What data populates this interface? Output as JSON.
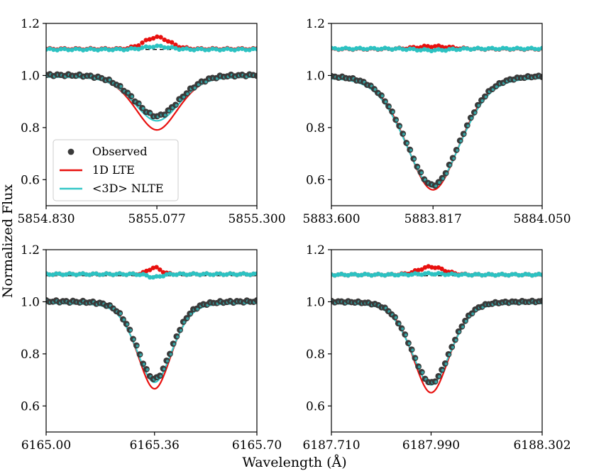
{
  "xlabel": "Wavelength (Å)",
  "ylabel": "Normalized Flux",
  "legend": {
    "placement": "lower-left of first panel",
    "entries": [
      {
        "label": "Observed",
        "marker": "dot",
        "color": "#3a3a3a"
      },
      {
        "label": "1D LTE",
        "marker": "line",
        "color": "#e8100e"
      },
      {
        "label": "<3D> NLTE",
        "marker": "line",
        "color": "#35c7c7"
      }
    ]
  },
  "colors": {
    "observed": "#3a3a3a",
    "lte": "#e8100e",
    "nlte": "#35c7c7",
    "residual_lte": "#e8100e",
    "residual_nlte": "#2cc2c2",
    "reference": "#000000"
  },
  "chart_data": [
    {
      "type": "line",
      "title": "",
      "xlim": [
        5854.83,
        5855.3
      ],
      "ylim": [
        0.5,
        1.2
      ],
      "xticks": [
        5854.83,
        5855.077,
        5855.3
      ],
      "xtick_labels": [
        "5854.830",
        "5855.077",
        "5855.300"
      ],
      "yticks": [
        0.6,
        0.8,
        1.0,
        1.2
      ],
      "ytick_labels": [
        "0.6",
        "0.8",
        "1.0",
        "1.2"
      ],
      "reference_line": 1.1,
      "observed": {
        "x0": 5854.83,
        "x1": 5855.3,
        "n": 58,
        "center": 5855.077,
        "depth": 0.16,
        "width": 0.075,
        "fuzz": 0.004
      },
      "model_lte": {
        "center": 5855.077,
        "depth": 0.205,
        "width": 0.07
      },
      "model_nlte": {
        "center": 5855.077,
        "depth": 0.17,
        "width": 0.074
      },
      "residual_lte": {
        "base": 1.102,
        "bump": 0.045,
        "width": 0.04,
        "n": 58
      },
      "residual_nlte": {
        "base": 1.1,
        "bump": 0.012,
        "width": 0.04,
        "n": 58
      },
      "legend_in_panel": true
    },
    {
      "type": "line",
      "title": "",
      "xlim": [
        5883.6,
        5884.05
      ],
      "ylim": [
        0.5,
        1.2
      ],
      "xticks": [
        5883.6,
        5883.817,
        5884.05
      ],
      "xtick_labels": [
        "5883.600",
        "5883.817",
        "5884.050"
      ],
      "yticks": [
        0.6,
        0.8,
        1.0,
        1.2
      ],
      "ytick_labels": [
        "0.6",
        "0.8",
        "1.0",
        "1.2"
      ],
      "reference_line": 1.1,
      "observed": {
        "x0": 5883.6,
        "x1": 5884.05,
        "n": 60,
        "center": 5883.817,
        "depth": 0.425,
        "width": 0.085,
        "fuzz": 0.003
      },
      "model_lte": {
        "center": 5883.817,
        "depth": 0.435,
        "width": 0.083
      },
      "model_nlte": {
        "center": 5883.817,
        "depth": 0.425,
        "width": 0.086
      },
      "residual_lte": {
        "base": 1.102,
        "bump": 0.01,
        "width": 0.05,
        "n": 60
      },
      "residual_nlte": {
        "base": 1.103,
        "bump": -0.006,
        "width": 0.05,
        "n": 60
      },
      "legend_in_panel": false
    },
    {
      "type": "line",
      "title": "",
      "xlim": [
        6165.0,
        6165.7
      ],
      "ylim": [
        0.5,
        1.2
      ],
      "xticks": [
        6165.0,
        6165.36,
        6165.7
      ],
      "xtick_labels": [
        "6165.00",
        "6165.36",
        "6165.70"
      ],
      "yticks": [
        0.6,
        0.8,
        1.0,
        1.2
      ],
      "ytick_labels": [
        "0.6",
        "0.8",
        "1.0",
        "1.2"
      ],
      "reference_line": 1.1,
      "observed": {
        "x0": 6165.0,
        "x1": 6165.7,
        "n": 64,
        "center": 6165.36,
        "depth": 0.3,
        "width": 0.085,
        "fuzz": 0.004
      },
      "model_lte": {
        "center": 6165.36,
        "depth": 0.33,
        "width": 0.082
      },
      "model_nlte": {
        "center": 6165.36,
        "depth": 0.305,
        "width": 0.086
      },
      "residual_lte": {
        "base": 1.106,
        "bump": 0.025,
        "width": 0.03,
        "n": 64
      },
      "residual_nlte": {
        "base": 1.106,
        "bump": -0.012,
        "width": 0.03,
        "n": 64
      },
      "legend_in_panel": false
    },
    {
      "type": "line",
      "title": "",
      "xlim": [
        6187.71,
        6188.302
      ],
      "ylim": [
        0.5,
        1.2
      ],
      "xticks": [
        6187.71,
        6187.99,
        6188.302
      ],
      "xtick_labels": [
        "6187.710",
        "6187.990",
        "6188.302"
      ],
      "yticks": [
        0.6,
        0.8,
        1.0,
        1.2
      ],
      "ytick_labels": [
        "0.6",
        "0.8",
        "1.0",
        "1.2"
      ],
      "reference_line": 1.1,
      "observed": {
        "x0": 6187.71,
        "x1": 6188.302,
        "n": 64,
        "center": 6187.99,
        "depth": 0.315,
        "width": 0.08,
        "fuzz": 0.003
      },
      "model_lte": {
        "center": 6187.99,
        "depth": 0.345,
        "width": 0.075
      },
      "model_nlte": {
        "center": 6187.99,
        "depth": 0.315,
        "width": 0.08
      },
      "residual_lte": {
        "base": 1.104,
        "bump": 0.03,
        "width": 0.05,
        "n": 64
      },
      "residual_nlte": {
        "base": 1.104,
        "bump": 0.004,
        "width": 0.05,
        "n": 64
      },
      "legend_in_panel": false
    }
  ]
}
